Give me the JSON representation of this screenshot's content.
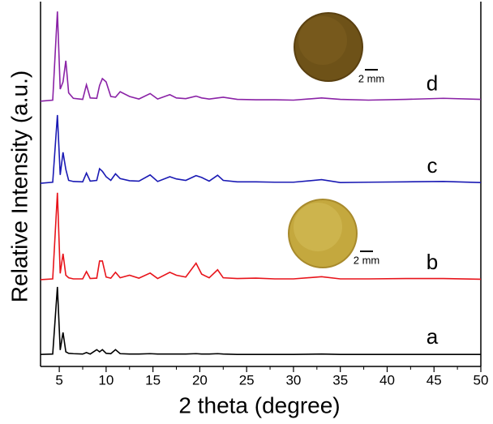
{
  "chart_data": {
    "type": "line",
    "x_label": "2 theta (degree)",
    "y_label": "Relative Intensity (a.u.)",
    "x": [
      3,
      4.3,
      4.8,
      5.1,
      5.4,
      5.7,
      6.0,
      6.5,
      7.5,
      7.9,
      8.3,
      9.0,
      9.3,
      9.6,
      10.0,
      10.5,
      11.0,
      11.5,
      12.5,
      13.5,
      14.7,
      15.5,
      16.8,
      17.5,
      18.5,
      19.6,
      20.2,
      21.0,
      21.9,
      22.5,
      24,
      26,
      28,
      30,
      33,
      35,
      38,
      42,
      46,
      50
    ],
    "series": [
      {
        "name": "a",
        "color": "#000000",
        "values": [
          3.3,
          3.4,
          21.8,
          4.5,
          9.3,
          4.0,
          3.6,
          3.5,
          3.4,
          3.8,
          3.4,
          4.6,
          4.0,
          4.6,
          3.6,
          3.5,
          4.6,
          3.5,
          3.4,
          3.4,
          3.5,
          3.4,
          3.4,
          3.4,
          3.4,
          3.5,
          3.4,
          3.4,
          3.5,
          3.4,
          3.3,
          3.3,
          3.3,
          3.3,
          3.4,
          3.3,
          3.3,
          3.3,
          3.3,
          3.3
        ]
      },
      {
        "name": "b",
        "color": "#e8141b",
        "values": [
          23.8,
          24.0,
          47.6,
          25.5,
          30.9,
          25.0,
          24.3,
          24.0,
          24.0,
          26.0,
          24.1,
          24.2,
          28.9,
          28.9,
          24.5,
          24.2,
          25.8,
          24.3,
          25.0,
          24.2,
          25.6,
          24.1,
          25.8,
          25.0,
          24.5,
          28.3,
          25.3,
          24.3,
          26.5,
          24.3,
          24.1,
          24.2,
          24.0,
          24.0,
          24.6,
          24.0,
          24.0,
          24.1,
          24.1,
          23.9
        ]
      },
      {
        "name": "c",
        "color": "#1a1ab4",
        "values": [
          50.2,
          50.5,
          68.9,
          52.5,
          58.7,
          54.0,
          51.0,
          50.7,
          50.6,
          53.0,
          50.8,
          51.0,
          54.2,
          53.5,
          52.0,
          51.0,
          52.8,
          51.5,
          50.9,
          50.8,
          52.5,
          50.7,
          52.0,
          51.4,
          51.0,
          52.3,
          51.8,
          50.8,
          52.4,
          51.0,
          50.6,
          50.6,
          50.5,
          50.5,
          51.2,
          50.4,
          50.5,
          50.6,
          50.7,
          50.4
        ]
      },
      {
        "name": "d",
        "color": "#8a22a6",
        "values": [
          72.7,
          73.0,
          97.3,
          76.0,
          78.0,
          83.8,
          75.0,
          73.5,
          73.2,
          77.2,
          73.6,
          73.5,
          77.0,
          78.9,
          78.0,
          74.0,
          73.8,
          75.3,
          74.0,
          73.3,
          74.8,
          73.3,
          74.5,
          73.6,
          73.4,
          74.1,
          73.6,
          73.3,
          73.6,
          73.8,
          73.2,
          73.1,
          73.1,
          73.0,
          73.6,
          73.2,
          73.0,
          73.2,
          73.5,
          73.2
        ]
      }
    ],
    "scale_labels": [
      "2 mm",
      "2 mm"
    ],
    "xlim": [
      3,
      50
    ],
    "xticks": [
      5,
      10,
      15,
      20,
      25,
      30,
      35,
      40,
      45,
      50
    ],
    "ylim": [
      0,
      100
    ]
  }
}
